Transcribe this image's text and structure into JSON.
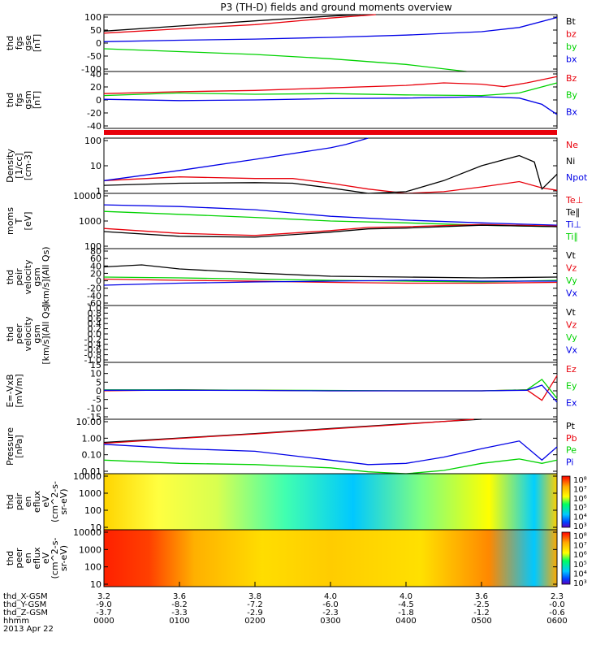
{
  "chart_data": {
    "type": "line",
    "title": "P3 (TH-D) fields and ground moments overview",
    "colors": {
      "black": "#000000",
      "red": "#e8000b",
      "green": "#00d200",
      "blue": "#0000e6"
    },
    "panels": [
      {
        "id": "fgs-gse",
        "ylabel": [
          "thd",
          "fgs",
          "gse",
          "[nT]"
        ],
        "yticks": [
          "100",
          "50",
          "0",
          "-50",
          "-100"
        ],
        "ylim": [
          -100,
          100
        ],
        "legend": [
          {
            "label": "Bt",
            "color": "black"
          },
          {
            "label": "bz",
            "color": "red"
          },
          {
            "label": "by",
            "color": "green"
          },
          {
            "label": "bx",
            "color": "blue"
          }
        ],
        "series": [
          {
            "name": "Bt",
            "color": "black",
            "x": [
              0,
              0.1,
              0.2,
              0.3,
              0.34
            ],
            "y": [
              42,
              60,
              78,
              95,
              100
            ]
          },
          {
            "name": "bz",
            "color": "red",
            "x": [
              0,
              0.1,
              0.2,
              0.3,
              0.36
            ],
            "y": [
              35,
              50,
              65,
              88,
              100
            ]
          },
          {
            "name": "by",
            "color": "green",
            "x": [
              0,
              0.1,
              0.2,
              0.3,
              0.4,
              0.48
            ],
            "y": [
              -20,
              -30,
              -40,
              -55,
              -75,
              -100
            ]
          },
          {
            "name": "bx",
            "color": "blue",
            "x": [
              0,
              0.1,
              0.2,
              0.3,
              0.4,
              0.5,
              0.55,
              0.6
            ],
            "y": [
              5,
              10,
              14,
              20,
              28,
              40,
              55,
              90
            ]
          }
        ]
      },
      {
        "id": "fgs-gsm",
        "ylabel": [
          "thd",
          "fgs",
          "gsm",
          "[nT]"
        ],
        "yticks": [
          "40",
          "20",
          "0",
          "-20",
          "-40"
        ],
        "ylim": [
          -50,
          40
        ],
        "legend": [
          {
            "label": "Bz",
            "color": "red"
          },
          {
            "label": "By",
            "color": "green"
          },
          {
            "label": "Bx",
            "color": "blue"
          }
        ],
        "series": [
          {
            "name": "Bz",
            "color": "red",
            "x": [
              0,
              0.1,
              0.2,
              0.3,
              0.4,
              0.45,
              0.5,
              0.53,
              0.56,
              0.6
            ],
            "y": [
              5,
              8,
              10,
              14,
              18,
              22,
              20,
              16,
              22,
              32
            ]
          },
          {
            "name": "By",
            "color": "green",
            "x": [
              0,
              0.1,
              0.2,
              0.3,
              0.4,
              0.5,
              0.55,
              0.6
            ],
            "y": [
              2,
              6,
              4,
              5,
              3,
              2,
              6,
              22
            ]
          },
          {
            "name": "Bx",
            "color": "blue",
            "x": [
              0,
              0.1,
              0.2,
              0.3,
              0.4,
              0.5,
              0.55,
              0.58,
              0.6
            ],
            "y": [
              -4,
              -6,
              -5,
              -3,
              -2,
              0,
              -2,
              -12,
              -28
            ]
          }
        ]
      },
      {
        "id": "density",
        "ylabel": [
          "Density",
          "[1/cc]",
          "[cm-3]"
        ],
        "yticks": [
          "100",
          "10",
          "1"
        ],
        "ylim": [
          0.5,
          200
        ],
        "log": true,
        "legend": [
          {
            "label": "Ne",
            "color": "red"
          },
          {
            "label": "Ni",
            "color": "black"
          },
          {
            "label": "Npot",
            "color": "blue"
          }
        ],
        "series": [
          {
            "name": "Ne",
            "color": "red",
            "x": [
              0,
              0.1,
              0.2,
              0.25,
              0.3,
              0.35,
              0.4,
              0.45,
              0.5,
              0.55,
              0.58,
              0.6
            ],
            "y": [
              2,
              3,
              2.5,
              2.5,
              1.5,
              0.8,
              0.5,
              0.6,
              1.0,
              1.8,
              0.9,
              0.7
            ]
          },
          {
            "name": "Ni",
            "color": "black",
            "x": [
              0,
              0.1,
              0.2,
              0.25,
              0.3,
              0.35,
              0.4,
              0.45,
              0.5,
              0.55,
              0.57,
              0.58,
              0.6
            ],
            "y": [
              1.2,
              1.5,
              1.6,
              1.5,
              0.9,
              0.5,
              0.6,
              2,
              10,
              30,
              15,
              0.8,
              4
            ]
          },
          {
            "name": "Npot",
            "color": "blue",
            "x": [
              0,
              0.1,
              0.2,
              0.3,
              0.32,
              0.35
            ],
            "y": [
              2,
              6,
              20,
              70,
              100,
              200
            ]
          }
        ]
      },
      {
        "id": "temperature",
        "ylabel": [
          "moms",
          "T",
          "[eV]"
        ],
        "yticks": [
          "10000",
          "1000",
          "100"
        ],
        "ylim": [
          30,
          10000
        ],
        "log": true,
        "legend": [
          {
            "label": "Te⊥",
            "color": "red"
          },
          {
            "label": "Te∥",
            "color": "black"
          },
          {
            "label": "Ti⊥",
            "color": "blue"
          },
          {
            "label": "Ti∥",
            "color": "green"
          }
        ],
        "series": [
          {
            "name": "Ti⊥",
            "color": "blue",
            "x": [
              0,
              0.1,
              0.2,
              0.3,
              0.4,
              0.5,
              0.6
            ],
            "y": [
              3000,
              2500,
              1800,
              900,
              600,
              450,
              350
            ]
          },
          {
            "name": "Ti∥",
            "color": "green",
            "x": [
              0,
              0.1,
              0.2,
              0.3,
              0.4,
              0.5,
              0.6
            ],
            "y": [
              1500,
              1100,
              800,
              550,
              450,
              350,
              300
            ]
          },
          {
            "name": "Te⊥",
            "color": "red",
            "x": [
              0,
              0.1,
              0.2,
              0.3,
              0.35,
              0.4,
              0.5,
              0.6
            ],
            "y": [
              250,
              150,
              120,
              200,
              280,
              300,
              380,
              320
            ]
          },
          {
            "name": "Te∥",
            "color": "black",
            "x": [
              0,
              0.1,
              0.2,
              0.3,
              0.35,
              0.4,
              0.5,
              0.6
            ],
            "y": [
              180,
              110,
              100,
              170,
              240,
              260,
              350,
              300
            ]
          }
        ]
      },
      {
        "id": "peir-velocity",
        "ylabel": [
          "thd",
          "peir",
          "velocity",
          "gsm",
          "[km/s](All Qs)"
        ],
        "yticks": [
          "80",
          "60",
          "40",
          "20",
          "0",
          "-20",
          "-40",
          "-60"
        ],
        "ylim": [
          -60,
          80
        ],
        "legend": [
          {
            "label": "Vt",
            "color": "black"
          },
          {
            "label": "Vz",
            "color": "red"
          },
          {
            "label": "Vy",
            "color": "green"
          },
          {
            "label": "Vx",
            "color": "blue"
          }
        ],
        "series": [
          {
            "name": "Vt",
            "color": "black",
            "x": [
              0,
              0.05,
              0.1,
              0.15,
              0.2,
              0.3,
              0.4,
              0.5,
              0.6
            ],
            "y": [
              35,
              40,
              30,
              25,
              20,
              12,
              10,
              8,
              10
            ]
          },
          {
            "name": "Vz",
            "color": "red",
            "x": [
              0,
              0.1,
              0.2,
              0.3,
              0.4,
              0.5,
              0.6
            ],
            "y": [
              5,
              2,
              0,
              -3,
              -5,
              -5,
              -3
            ]
          },
          {
            "name": "Vy",
            "color": "green",
            "x": [
              0,
              0.1,
              0.2,
              0.3,
              0.4,
              0.5,
              0.6
            ],
            "y": [
              10,
              8,
              5,
              2,
              0,
              -2,
              2
            ]
          },
          {
            "name": "Vx",
            "color": "blue",
            "x": [
              0,
              0.1,
              0.2,
              0.3,
              0.4,
              0.5,
              0.6
            ],
            "y": [
              -10,
              -5,
              -2,
              0,
              2,
              0,
              0
            ]
          }
        ]
      },
      {
        "id": "peer-velocity",
        "ylabel": [
          "thd",
          "peer",
          "velocity",
          "gsm",
          "[km/s](All Qs)"
        ],
        "yticks": [
          "1.0",
          "0.8",
          "0.6",
          "0.4",
          "0.2",
          "0.0",
          "-0.2",
          "-0.4",
          "-0.6",
          "-0.8",
          "-1.0"
        ],
        "ylim": [
          -1,
          1
        ],
        "legend": [
          {
            "label": "Vt",
            "color": "black"
          },
          {
            "label": "Vz",
            "color": "red"
          },
          {
            "label": "Vy",
            "color": "green"
          },
          {
            "label": "Vx",
            "color": "blue"
          }
        ],
        "series": []
      },
      {
        "id": "e-vxb",
        "ylabel": [
          "E=-VxB",
          "[mV/m]"
        ],
        "yticks": [
          "15",
          "10",
          "5",
          "0",
          "-5",
          "-10",
          "-15"
        ],
        "ylim": [
          -15,
          15
        ],
        "legend": [
          {
            "label": "Ez",
            "color": "red"
          },
          {
            "label": "Ey",
            "color": "green"
          },
          {
            "label": "Ex",
            "color": "blue"
          }
        ],
        "series": [
          {
            "name": "Ez",
            "color": "red",
            "x": [
              0,
              0.1,
              0.2,
              0.3,
              0.4,
              0.5,
              0.56,
              0.58,
              0.6
            ],
            "y": [
              0,
              0.5,
              0.3,
              0,
              0,
              0,
              0.5,
              -5,
              8
            ]
          },
          {
            "name": "Ey",
            "color": "green",
            "x": [
              0,
              0.1,
              0.2,
              0.3,
              0.4,
              0.5,
              0.56,
              0.58,
              0.6
            ],
            "y": [
              0.5,
              0.5,
              0.3,
              0.2,
              0,
              0,
              0.5,
              6,
              -4
            ]
          },
          {
            "name": "Ex",
            "color": "blue",
            "x": [
              0,
              0.1,
              0.2,
              0.3,
              0.4,
              0.5,
              0.56,
              0.58,
              0.6
            ],
            "y": [
              0.3,
              0.3,
              0.2,
              0,
              0,
              0,
              0.3,
              3,
              -6
            ]
          }
        ]
      },
      {
        "id": "pressure",
        "ylabel": [
          "Pressure",
          "[nPa]"
        ],
        "yticks": [
          "10.00",
          "1.00",
          "0.10",
          "0.01"
        ],
        "ylim": [
          0.006,
          30
        ],
        "log": true,
        "legend": [
          {
            "label": "Pt",
            "color": "black"
          },
          {
            "label": "Pb",
            "color": "red"
          },
          {
            "label": "Pe",
            "color": "green"
          },
          {
            "label": "Pi",
            "color": "blue"
          }
        ],
        "series": [
          {
            "name": "Pt",
            "color": "black",
            "x": [
              0,
              0.1,
              0.2,
              0.3,
              0.4,
              0.5
            ],
            "y": [
              0.8,
              1.6,
              3.2,
              7,
              15,
              30
            ]
          },
          {
            "name": "Pb",
            "color": "red",
            "x": [
              0,
              0.1,
              0.2,
              0.3,
              0.4,
              0.49
            ],
            "y": [
              0.7,
              1.5,
              3,
              6.5,
              14,
              30
            ]
          },
          {
            "name": "Pi",
            "color": "blue",
            "x": [
              0,
              0.1,
              0.2,
              0.3,
              0.35,
              0.4,
              0.45,
              0.5,
              0.55,
              0.58,
              0.6
            ],
            "y": [
              0.6,
              0.3,
              0.2,
              0.05,
              0.025,
              0.03,
              0.08,
              0.3,
              1.0,
              0.05,
              0.4
            ]
          },
          {
            "name": "Pe",
            "color": "green",
            "x": [
              0,
              0.1,
              0.2,
              0.3,
              0.35,
              0.4,
              0.45,
              0.5,
              0.55,
              0.58,
              0.6
            ],
            "y": [
              0.05,
              0.03,
              0.025,
              0.015,
              0.008,
              0.006,
              0.01,
              0.03,
              0.06,
              0.03,
              0.05
            ]
          }
        ]
      },
      {
        "id": "peir-eflux",
        "type": "heatmap",
        "ylabel": [
          "thd",
          "peir",
          "en",
          "eflux",
          "eV",
          "(cm^2-s-",
          "sr-eV)"
        ],
        "yticks": [
          "10000",
          "1000",
          "100",
          "10"
        ],
        "colorbar_ticks": [
          "10⁸",
          "10⁷",
          "10⁶",
          "10⁵",
          "10⁴",
          "10³"
        ]
      },
      {
        "id": "peer-eflux",
        "type": "heatmap",
        "ylabel": [
          "thd",
          "peer",
          "en",
          "eflux",
          "eV",
          "(cm^2-s-",
          "sr-eV)"
        ],
        "yticks": [
          "10000",
          "1000",
          "100",
          "10"
        ],
        "colorbar_ticks": [
          "10⁸",
          "10⁷",
          "10⁶",
          "10⁵",
          "10⁴",
          "10³"
        ]
      }
    ],
    "x_axis": {
      "row_labels": [
        "thd_X-GSM",
        "thd_Y-GSM",
        "thd_Z-GSM",
        "hhmm",
        "2013 Apr 22"
      ],
      "columns": [
        [
          "3.2",
          "-9.0",
          "-3.7",
          "0000"
        ],
        [
          "3.6",
          "-8.2",
          "-3.3",
          "0100"
        ],
        [
          "3.8",
          "-7.2",
          "-2.9",
          "0200"
        ],
        [
          "4.0",
          "-6.0",
          "-2.3",
          "0300"
        ],
        [
          "4.0",
          "-4.5",
          "-1.8",
          "0400"
        ],
        [
          "3.6",
          "-2.5",
          "-1.2",
          "0500"
        ],
        [
          "2.3",
          "-0.0",
          "-0.6",
          "0600"
        ]
      ]
    }
  }
}
